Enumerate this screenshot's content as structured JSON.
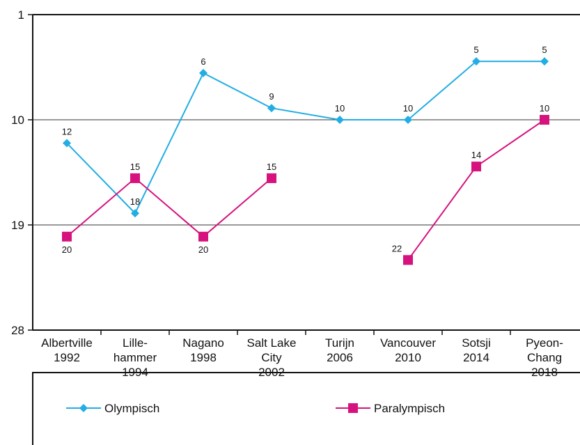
{
  "chart_data": {
    "type": "line",
    "categories": [
      [
        "Albertville",
        "1992"
      ],
      [
        "Lille-",
        "hammer",
        "1994"
      ],
      [
        "Nagano",
        "1998"
      ],
      [
        "Salt Lake",
        "City",
        "2002"
      ],
      [
        "Turijn",
        "2006"
      ],
      [
        "Vancouver",
        "2010"
      ],
      [
        "Sotsji",
        "2014"
      ],
      [
        "Pyeon-",
        "Chang",
        "2018"
      ]
    ],
    "series": [
      {
        "name": "Olympisch",
        "color": "#22ade4",
        "marker": "diamond",
        "values": [
          12,
          18,
          6,
          9,
          10,
          10,
          5,
          5
        ]
      },
      {
        "name": "Paralympisch",
        "color": "#d6127e",
        "marker": "square",
        "values": [
          20,
          15,
          20,
          15,
          null,
          22,
          14,
          10
        ]
      }
    ],
    "ylim": [
      1,
      28
    ],
    "yticks": [
      1,
      10,
      19,
      28
    ],
    "y_inverted": true,
    "grid": true,
    "legend": "bottom"
  }
}
